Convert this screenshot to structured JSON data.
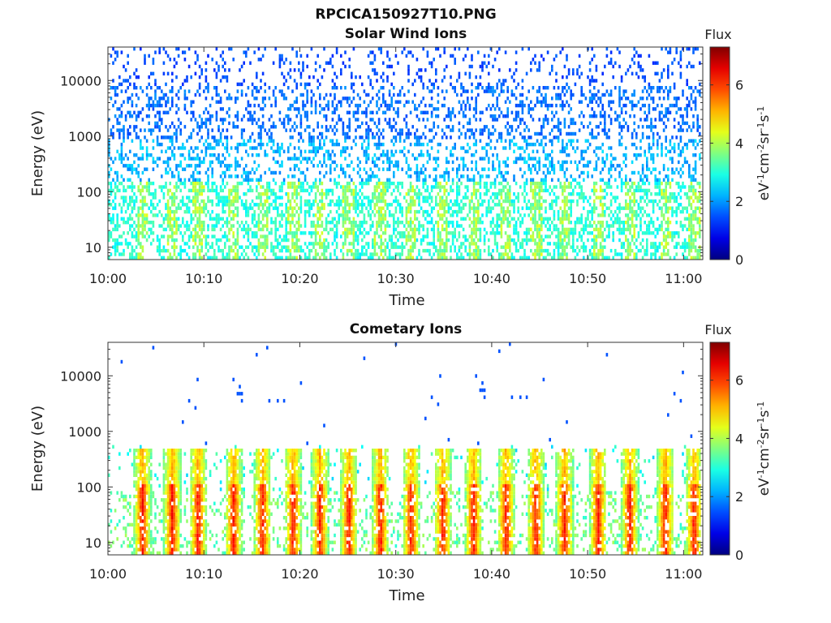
{
  "figure": {
    "title": "RPCICA150927T10.PNG"
  },
  "chart_data": [
    {
      "type": "heatmap",
      "title": "Solar Wind Ions",
      "xlabel": "Time",
      "ylabel": "Energy (eV)",
      "x_ticks": [
        "10:00",
        "10:10",
        "10:20",
        "10:30",
        "10:40",
        "10:50",
        "11:00"
      ],
      "x_range": [
        "10:00",
        "11:02"
      ],
      "y_scale": "log",
      "y_ticks": [
        10,
        100,
        1000,
        10000
      ],
      "y_tick_labels": [
        "10",
        "100",
        "1000",
        "10000"
      ],
      "ylim": [
        6,
        40000
      ],
      "colorbar": {
        "title": "Flux",
        "label": "eV-1cm-2sr-1s-1",
        "ticks": [
          0,
          2,
          4,
          6
        ],
        "range": [
          0,
          7.3
        ]
      },
      "colormap": "jet",
      "description_values": {
        "background_flux_high_energy": 1.5,
        "low_energy_flux": 3.0,
        "peak_flux": 4.5
      }
    },
    {
      "type": "heatmap",
      "title": "Cometary Ions",
      "xlabel": "Time",
      "ylabel": "Energy (eV)",
      "x_ticks": [
        "10:00",
        "10:10",
        "10:20",
        "10:30",
        "10:40",
        "10:50",
        "11:00"
      ],
      "x_range": [
        "10:00",
        "11:02"
      ],
      "y_scale": "log",
      "y_ticks": [
        10,
        100,
        1000,
        10000
      ],
      "y_tick_labels": [
        "10",
        "100",
        "1000",
        "10000"
      ],
      "ylim": [
        6,
        40000
      ],
      "colorbar": {
        "title": "Flux",
        "label": "eV-1cm-2sr-1s-1",
        "ticks": [
          0,
          2,
          4,
          6
        ],
        "range": [
          0,
          7.3
        ]
      },
      "colormap": "jet",
      "description_values": {
        "burst_peak_energy_eV": 40,
        "burst_peak_flux": 6.0,
        "burst_max_energy_eV": 500
      }
    }
  ]
}
